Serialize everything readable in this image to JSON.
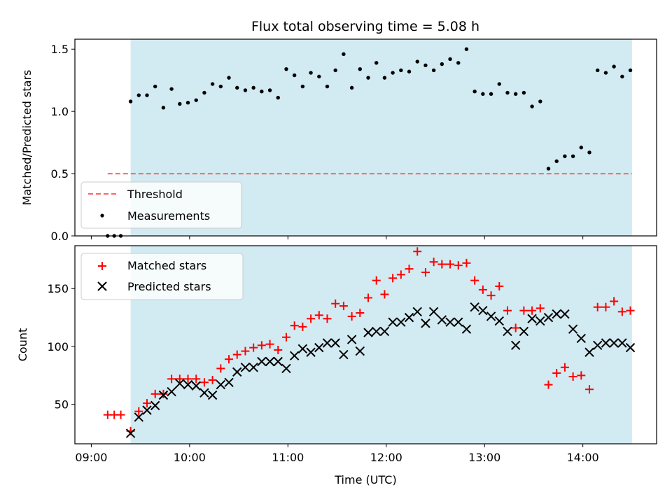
{
  "title": "Flux total observing time = 5.08 h",
  "colors": {
    "observing_window": "#add8e6",
    "threshold": "#ff6464",
    "measurements": "#000000",
    "matched": "#ff0000",
    "predicted": "#000000"
  },
  "chart_data": [
    {
      "type": "scatter",
      "name": "ratio_panel",
      "xlabel": "",
      "ylabel": "Matched/Predicted stars",
      "x_unit": "hours UTC",
      "xlim": [
        "08:50",
        "14:45"
      ],
      "ylim": [
        0,
        1.58
      ],
      "yticks": [
        "0.0",
        "0.5",
        "1.0",
        "1.5"
      ],
      "shaded_region": {
        "x": [
          "09:24",
          "14:30"
        ],
        "color": "lightblue"
      },
      "threshold": {
        "name": "Threshold",
        "y": 0.5,
        "x": [
          "09:10",
          "14:30"
        ],
        "style": "dashed"
      },
      "legend": {
        "location": "lower-left",
        "entries": [
          "Threshold",
          "Measurements"
        ]
      },
      "series": [
        {
          "name": "Measurements",
          "marker": "dot",
          "x": [
            "09:10",
            "09:14",
            "09:18",
            "09:24",
            "09:29",
            "09:34",
            "09:39",
            "09:44",
            "09:49",
            "09:54",
            "09:59",
            "10:04",
            "10:09",
            "10:14",
            "10:19",
            "10:24",
            "10:29",
            "10:34",
            "10:39",
            "10:44",
            "10:49",
            "10:54",
            "10:59",
            "11:04",
            "11:09",
            "11:14",
            "11:19",
            "11:24",
            "11:29",
            "11:34",
            "11:39",
            "11:44",
            "11:49",
            "11:54",
            "11:59",
            "12:04",
            "12:09",
            "12:14",
            "12:19",
            "12:24",
            "12:29",
            "12:34",
            "12:39",
            "12:44",
            "12:49",
            "12:54",
            "12:59",
            "13:04",
            "13:09",
            "13:14",
            "13:19",
            "13:24",
            "13:29",
            "13:34",
            "13:39",
            "13:44",
            "13:49",
            "13:54",
            "13:59",
            "14:04",
            "14:09",
            "14:14",
            "14:19",
            "14:24",
            "14:29"
          ],
          "y": [
            0.0,
            0.0,
            0.0,
            1.08,
            1.13,
            1.13,
            1.2,
            1.03,
            1.18,
            1.06,
            1.07,
            1.09,
            1.15,
            1.22,
            1.2,
            1.27,
            1.19,
            1.17,
            1.19,
            1.16,
            1.17,
            1.11,
            1.34,
            1.29,
            1.2,
            1.31,
            1.28,
            1.2,
            1.33,
            1.46,
            1.19,
            1.34,
            1.27,
            1.39,
            1.27,
            1.31,
            1.33,
            1.32,
            1.4,
            1.37,
            1.33,
            1.38,
            1.42,
            1.39,
            1.5,
            1.16,
            1.14,
            1.14,
            1.22,
            1.15,
            1.14,
            1.15,
            1.04,
            1.08,
            0.54,
            0.6,
            0.64,
            0.64,
            0.71,
            0.67,
            1.33,
            1.31,
            1.36,
            1.28,
            1.33
          ]
        }
      ]
    },
    {
      "type": "scatter",
      "name": "count_panel",
      "xlabel": "Time (UTC)",
      "ylabel": "Count",
      "x_unit": "hours UTC",
      "xlim": [
        "08:50",
        "14:45"
      ],
      "ylim": [
        16,
        187
      ],
      "yticks": [
        "50",
        "100",
        "150"
      ],
      "xticks": [
        "09:00",
        "10:00",
        "11:00",
        "12:00",
        "13:00",
        "14:00"
      ],
      "shaded_region": {
        "x": [
          "09:24",
          "14:30"
        ],
        "color": "lightblue"
      },
      "legend": {
        "location": "upper-left",
        "entries": [
          "Matched stars",
          "Predicted stars"
        ]
      },
      "series": [
        {
          "name": "Matched stars",
          "marker": "plus",
          "x": [
            "09:10",
            "09:14",
            "09:18",
            "09:24",
            "09:29",
            "09:34",
            "09:39",
            "09:44",
            "09:49",
            "09:54",
            "09:59",
            "10:04",
            "10:09",
            "10:14",
            "10:19",
            "10:24",
            "10:29",
            "10:34",
            "10:39",
            "10:44",
            "10:49",
            "10:54",
            "10:59",
            "11:04",
            "11:09",
            "11:14",
            "11:19",
            "11:24",
            "11:29",
            "11:34",
            "11:39",
            "11:44",
            "11:49",
            "11:54",
            "11:59",
            "12:04",
            "12:09",
            "12:14",
            "12:19",
            "12:24",
            "12:29",
            "12:34",
            "12:39",
            "12:44",
            "12:49",
            "12:54",
            "12:59",
            "13:04",
            "13:09",
            "13:14",
            "13:19",
            "13:24",
            "13:29",
            "13:34",
            "13:39",
            "13:44",
            "13:49",
            "13:54",
            "13:59",
            "14:04",
            "14:09",
            "14:14",
            "14:19",
            "14:24",
            "14:29"
          ],
          "y": [
            41,
            41,
            41,
            27,
            44,
            51,
            59,
            59,
            72,
            72,
            72,
            72,
            69,
            71,
            81,
            89,
            93,
            96,
            99,
            101,
            102,
            97,
            108,
            118,
            117,
            124,
            127,
            124,
            137,
            135,
            126,
            129,
            142,
            157,
            145,
            159,
            162,
            167,
            182,
            164,
            173,
            171,
            171,
            170,
            172,
            157,
            149,
            144,
            152,
            131,
            116,
            131,
            131,
            133,
            67,
            77,
            82,
            74,
            75,
            63,
            134,
            134,
            139,
            130,
            131
          ]
        },
        {
          "name": "Predicted stars",
          "marker": "x",
          "x": [
            "09:24",
            "09:29",
            "09:34",
            "09:39",
            "09:44",
            "09:49",
            "09:54",
            "09:59",
            "10:04",
            "10:09",
            "10:14",
            "10:19",
            "10:24",
            "10:29",
            "10:34",
            "10:39",
            "10:44",
            "10:49",
            "10:54",
            "10:59",
            "11:04",
            "11:09",
            "11:14",
            "11:19",
            "11:24",
            "11:29",
            "11:34",
            "11:39",
            "11:44",
            "11:49",
            "11:54",
            "11:59",
            "12:04",
            "12:09",
            "12:14",
            "12:19",
            "12:24",
            "12:29",
            "12:34",
            "12:39",
            "12:44",
            "12:49",
            "12:54",
            "12:59",
            "13:04",
            "13:09",
            "13:14",
            "13:19",
            "13:24",
            "13:29",
            "13:34",
            "13:39",
            "13:44",
            "13:49",
            "13:54",
            "13:59",
            "14:04",
            "14:09",
            "14:14",
            "14:19",
            "14:24",
            "14:29"
          ],
          "y": [
            25,
            39,
            45,
            49,
            58,
            61,
            68,
            67,
            66,
            60,
            58,
            67,
            69,
            78,
            82,
            82,
            87,
            87,
            87,
            81,
            92,
            98,
            95,
            99,
            103,
            103,
            93,
            106,
            96,
            112,
            113,
            113,
            121,
            121,
            125,
            130,
            120,
            130,
            123,
            121,
            121,
            115,
            134,
            131,
            126,
            122,
            113,
            101,
            113,
            124,
            122,
            125,
            128,
            128,
            115,
            107,
            95,
            101,
            103,
            103,
            103,
            99
          ]
        }
      ]
    }
  ]
}
